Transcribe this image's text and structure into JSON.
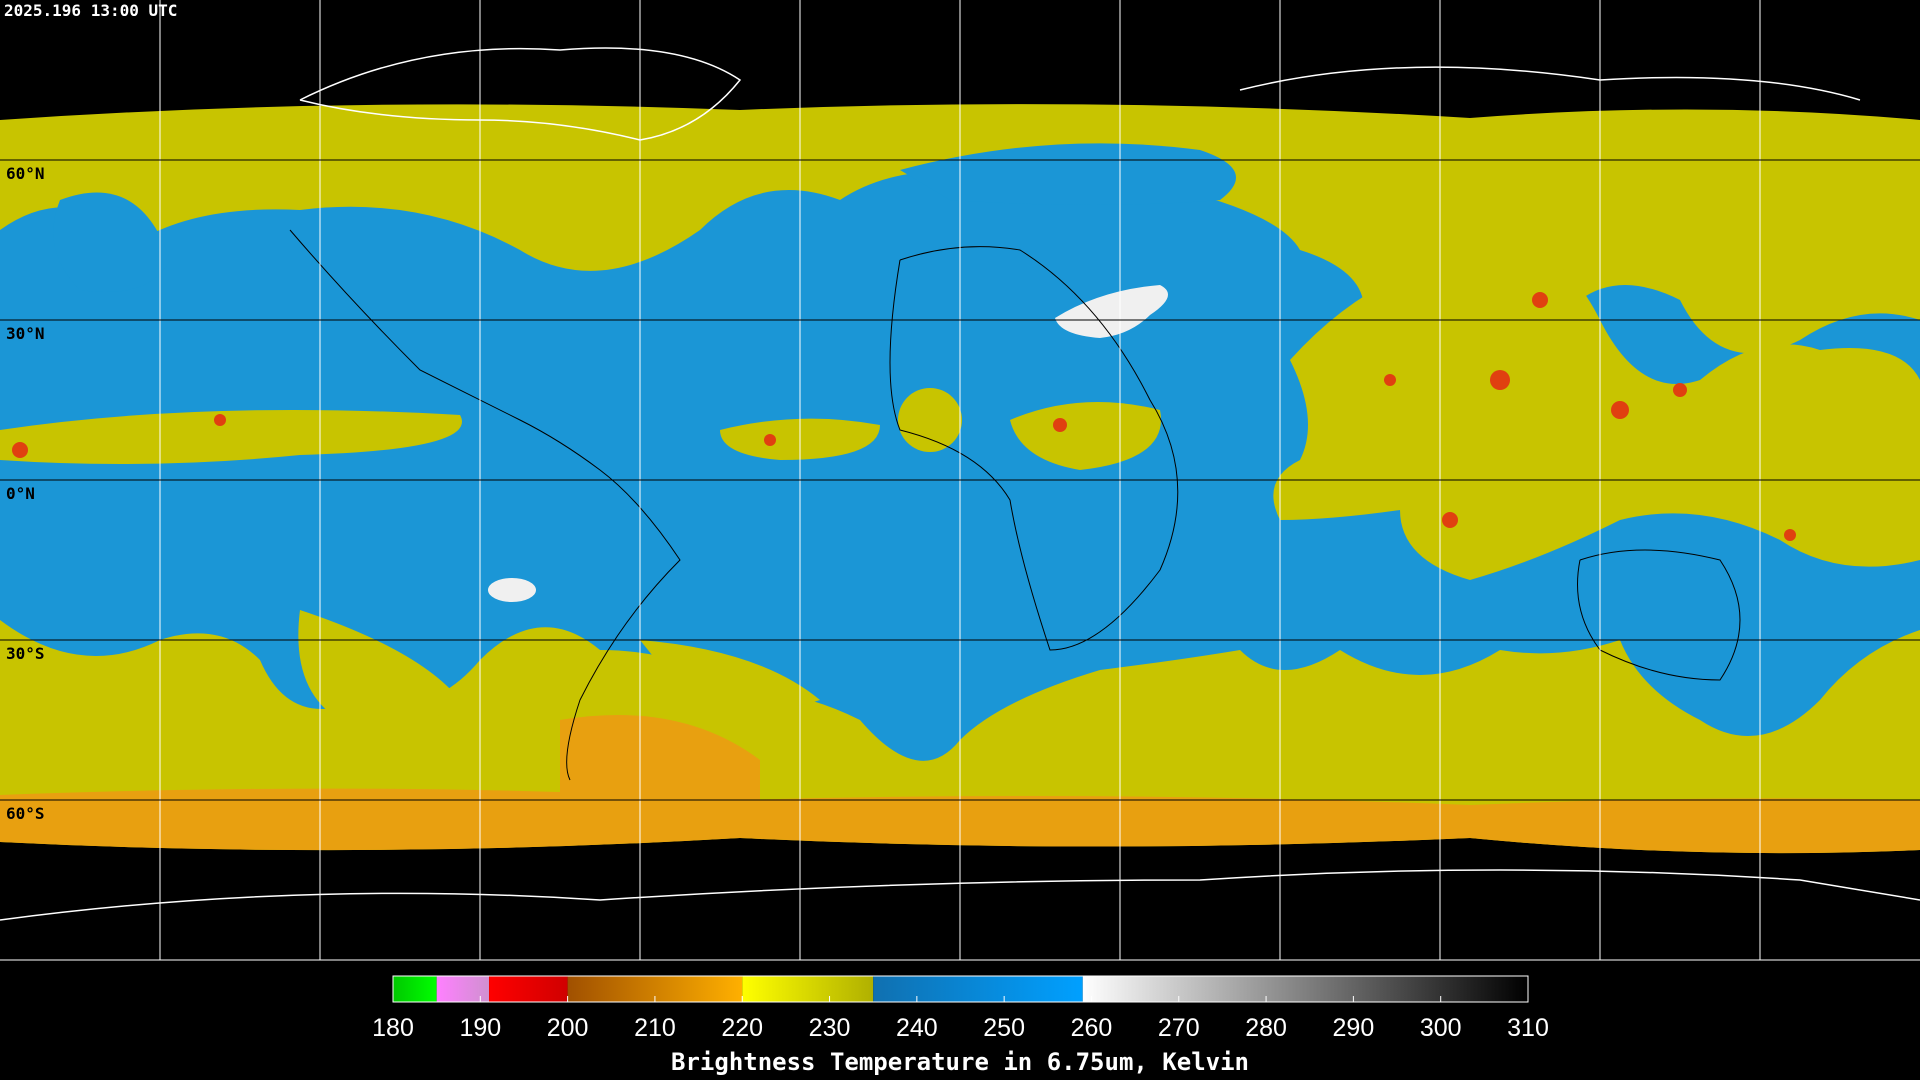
{
  "timestamp": "2025.196 13:00 UTC",
  "lat_labels": [
    "60°N",
    "30°N",
    "0°N",
    "30°S",
    "60°S"
  ],
  "colorbar": {
    "title": "Brightness Temperature in 6.75um, Kelvin",
    "range": [
      180,
      310
    ],
    "ticks": [
      180,
      190,
      200,
      210,
      220,
      230,
      240,
      250,
      260,
      270,
      280,
      290,
      300,
      310
    ],
    "segments": [
      {
        "from": 180,
        "to": 185,
        "colors": [
          "#00c800",
          "#00ff00"
        ]
      },
      {
        "from": 185,
        "to": 191,
        "colors": [
          "#ff80ff",
          "#d090d0"
        ]
      },
      {
        "from": 191,
        "to": 200,
        "colors": [
          "#ff0000",
          "#d00000"
        ]
      },
      {
        "from": 200,
        "to": 220,
        "colors": [
          "#a05000",
          "#ffb000"
        ]
      },
      {
        "from": 220,
        "to": 235,
        "colors": [
          "#ffff00",
          "#b0b000"
        ]
      },
      {
        "from": 235,
        "to": 259,
        "colors": [
          "#1070b0",
          "#00a0ff"
        ]
      },
      {
        "from": 259,
        "to": 310,
        "colors": [
          "#ffffff",
          "#000000"
        ]
      }
    ]
  }
}
